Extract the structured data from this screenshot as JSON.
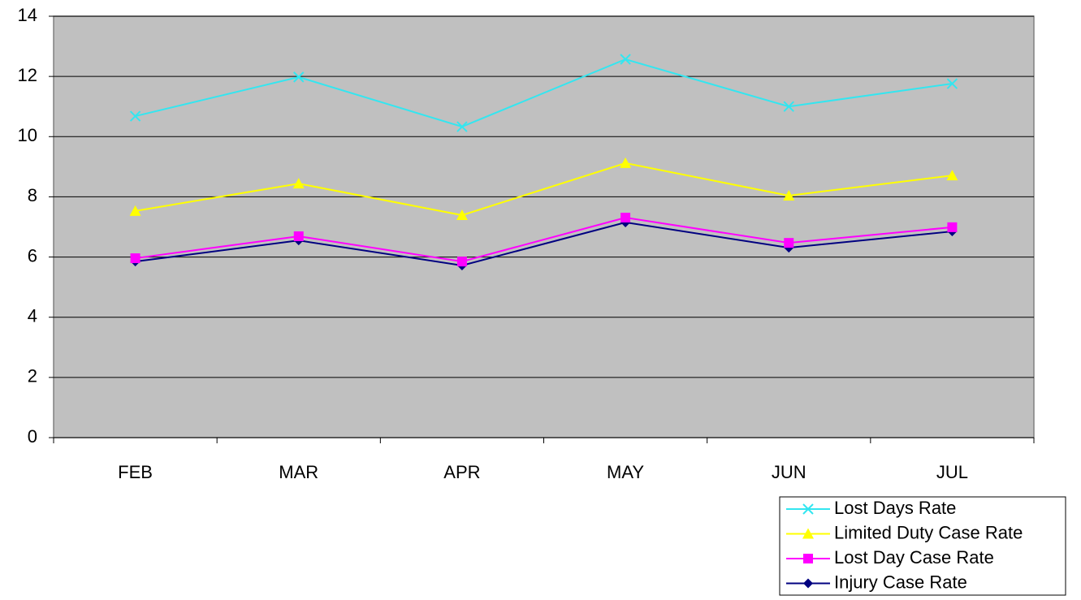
{
  "chart_data": {
    "type": "line",
    "categories": [
      "FEB",
      "MAR",
      "APR",
      "MAY",
      "JUN",
      "JUL"
    ],
    "series": [
      {
        "name": "Lost Days Rate",
        "color": "#33e6f0",
        "marker": "x",
        "values": [
          10.68,
          11.98,
          10.33,
          12.57,
          11.0,
          11.76
        ]
      },
      {
        "name": "Limited Duty Case Rate",
        "color": "#ffff00",
        "marker": "triangle",
        "values": [
          7.53,
          8.44,
          7.39,
          9.12,
          8.04,
          8.71
        ]
      },
      {
        "name": "Lost Day Case Rate",
        "color": "#ff00ff",
        "marker": "square",
        "values": [
          5.96,
          6.69,
          5.85,
          7.31,
          6.47,
          6.99
        ]
      },
      {
        "name": "Injury Case Rate",
        "color": "#000080",
        "marker": "diamond",
        "values": [
          5.85,
          6.55,
          5.72,
          7.15,
          6.31,
          6.85
        ]
      }
    ],
    "ylim": [
      0,
      14
    ],
    "yticks": [
      0,
      2,
      4,
      6,
      8,
      10,
      12,
      14
    ],
    "grid": true,
    "legend": "bottom-right"
  }
}
